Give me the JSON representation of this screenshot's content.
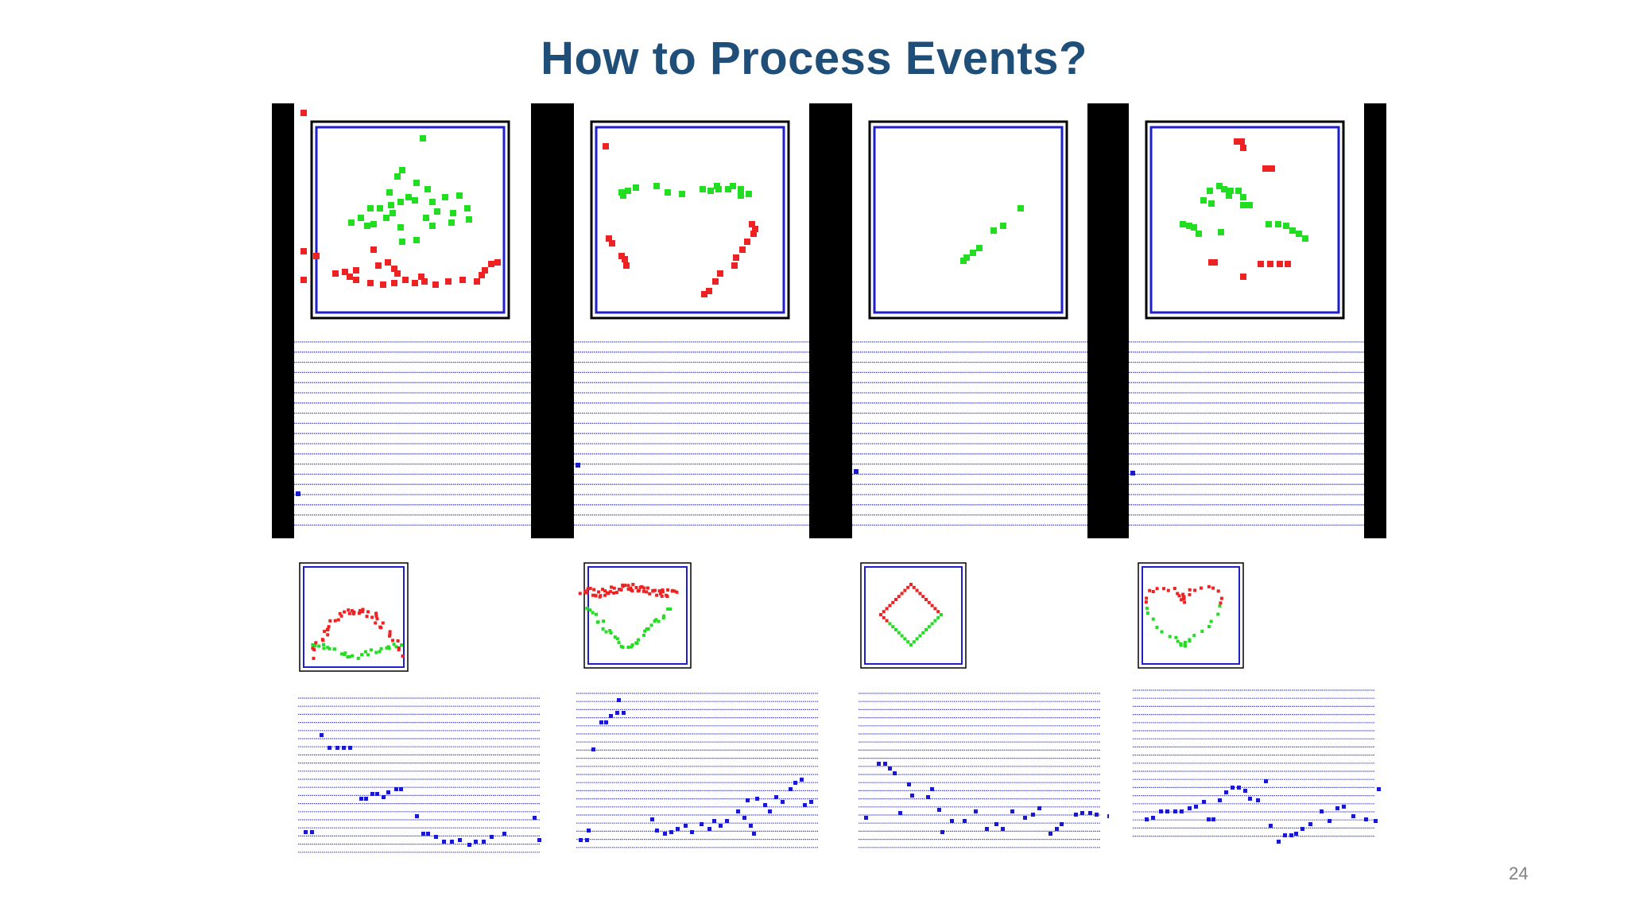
{
  "slide": {
    "title": "How to Process Events?",
    "page_number": "24"
  },
  "colors": {
    "title": "#1f4e79",
    "frame_border": "#000000",
    "box_border": "#1f1fcc",
    "row_line": "#4a4ad0",
    "on_event": "#22dd22",
    "off_event": "#ee2222",
    "spike": "#1a1acc"
  }
}
